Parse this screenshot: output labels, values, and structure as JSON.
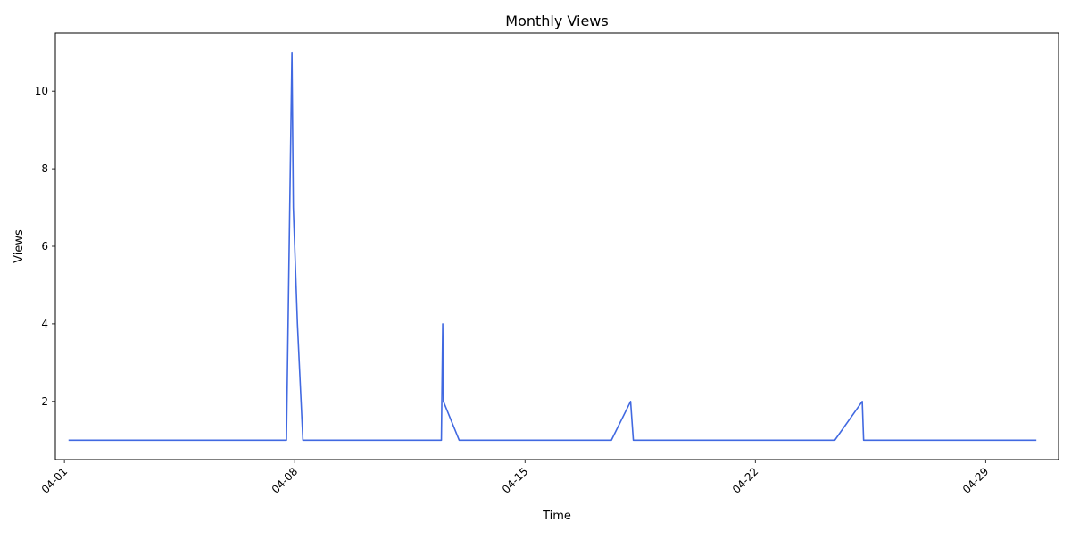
{
  "chart_data": {
    "type": "line",
    "title": "Monthly Views",
    "xlabel": "Time",
    "ylabel": "Views",
    "x_tick_labels": [
      "04-01",
      "04-08",
      "04-15",
      "04-22",
      "04-29"
    ],
    "x_tick_dates": [
      "2024-04-01",
      "2024-04-08",
      "2024-04-15",
      "2024-04-22",
      "2024-04-29"
    ],
    "y_ticks": [
      2,
      4,
      6,
      8,
      10
    ],
    "xlim": [
      "2023-03-31T17:24",
      "2023-05-01T05:10"
    ],
    "ylim": [
      0.5,
      11.5
    ],
    "grid": false,
    "color": "#4169e1",
    "series": [
      {
        "name": "",
        "x": [
          "2024-04-01T03:00",
          "2024-04-07T18:00",
          "2024-04-07T22:00",
          "2024-04-07T23:00",
          "2024-04-08T02:00",
          "2024-04-08T06:00",
          "2024-04-12T11:00",
          "2024-04-12T12:00",
          "2024-04-12T12:30",
          "2024-04-13T00:00",
          "2024-04-17T15:00",
          "2024-04-18T05:00",
          "2024-04-18T07:00",
          "2024-04-24T10:00",
          "2024-04-25T06:00",
          "2024-04-25T07:00",
          "2024-04-30T13:00"
        ],
        "y": [
          1,
          1,
          11,
          7,
          4,
          1,
          1,
          4,
          2,
          1,
          1,
          2,
          1,
          1,
          2,
          1,
          1
        ]
      }
    ]
  }
}
